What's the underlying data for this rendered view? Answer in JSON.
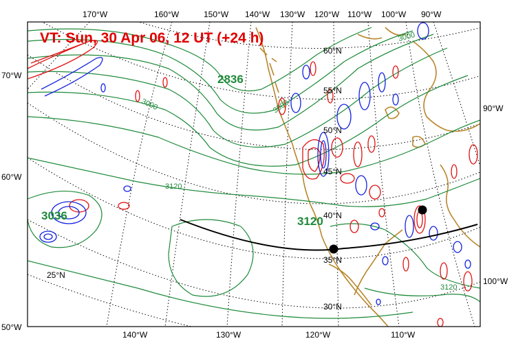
{
  "title": "VT:  Sun, 30 Apr 06, 12 UT (+24 h)",
  "colors": {
    "title": "#e00000",
    "height_contour": "#1e8a3a",
    "positive_contour": "#e01010",
    "negative_contour": "#1020e0",
    "coastline": "#b8862b",
    "graticule": "#000000",
    "cross_section": "#000000"
  },
  "longitude_labels_top": [
    "170°W",
    "160°W",
    "150°W",
    "140°W",
    "130°W",
    "120°W",
    "110°W",
    "100°W",
    "90°W"
  ],
  "longitude_labels_bottom": [
    "140°W",
    "130°W",
    "120°W",
    "110°W"
  ],
  "latitude_labels_left": [
    "70°W",
    "60°W",
    "50°W"
  ],
  "latitude_labels_right": [
    "90°W",
    "100°W"
  ],
  "interior_latitude_labels": [
    "60°N",
    "55°N",
    "50°N",
    "45°N",
    "40°N",
    "35°N",
    "30°N",
    "25°N"
  ],
  "height_labels": {
    "low_center": "2836",
    "west_high": "3036",
    "center_high": "3120",
    "contour_3000_a": "3000",
    "contour_3000_b": "3000",
    "contour_3000_c": "3000",
    "contour_3120_a": "3120",
    "contour_3120_b": "3120"
  }
}
